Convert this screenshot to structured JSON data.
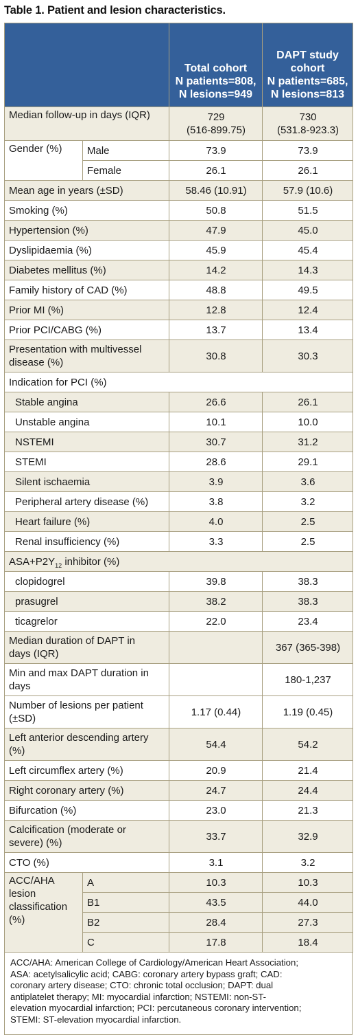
{
  "title": "Table 1. Patient and lesion characteristics.",
  "header": {
    "total": [
      "Total cohort",
      "N patients=808,",
      "N lesions=949"
    ],
    "dapt": [
      "DAPT study",
      "cohort",
      "N patients=685,",
      "N lesions=813"
    ]
  },
  "rows": {
    "followup": {
      "label": "Median follow-up in days (IQR)",
      "total": [
        "729",
        "(516-899.75)"
      ],
      "dapt": [
        "730",
        "(531.8-923.3)"
      ]
    },
    "gender": {
      "label": "Gender (%)",
      "male_label": "Male",
      "male_total": "73.9",
      "male_dapt": "73.9",
      "female_label": "Female",
      "female_total": "26.1",
      "female_dapt": "26.1"
    },
    "age": {
      "label": "Mean age in years (±SD)",
      "total": "58.46 (10.91)",
      "dapt": "57.9 (10.6)"
    },
    "smoking": {
      "label": "Smoking (%)",
      "total": "50.8",
      "dapt": "51.5"
    },
    "hypertension": {
      "label": "Hypertension (%)",
      "total": "47.9",
      "dapt": "45.0"
    },
    "dyslipidaemia": {
      "label": "Dyslipidaemia (%)",
      "total": "45.9",
      "dapt": "45.4"
    },
    "diabetes": {
      "label": "Diabetes mellitus (%)",
      "total": "14.2",
      "dapt": "14.3"
    },
    "family": {
      "label": "Family history of CAD (%)",
      "total": "48.8",
      "dapt": "49.5"
    },
    "prior_mi": {
      "label": "Prior MI (%)",
      "total": "12.8",
      "dapt": "12.4"
    },
    "prior_pci": {
      "label": "Prior PCI/CABG (%)",
      "total": "13.7",
      "dapt": "13.4"
    },
    "multivessel": {
      "label": [
        "Presentation with multivessel",
        "disease (%)"
      ],
      "total": "30.8",
      "dapt": "30.3"
    },
    "indication": {
      "label": "Indication for PCI (%)"
    },
    "stable": {
      "label": "Stable angina",
      "total": "26.6",
      "dapt": "26.1"
    },
    "unstable": {
      "label": "Unstable angina",
      "total": "10.1",
      "dapt": "10.0"
    },
    "nstemi": {
      "label": "NSTEMI",
      "total": "30.7",
      "dapt": "31.2"
    },
    "stemi": {
      "label": "STEMI",
      "total": "28.6",
      "dapt": "29.1"
    },
    "silent": {
      "label": "Silent ischaemia",
      "total": "3.9",
      "dapt": "3.6"
    },
    "peripheral": {
      "label": "Peripheral artery disease (%)",
      "total": "3.8",
      "dapt": "3.2"
    },
    "heart_failure": {
      "label": "Heart failure (%)",
      "total": "4.0",
      "dapt": "2.5"
    },
    "renal": {
      "label": "Renal insufficiency (%)",
      "total": "3.3",
      "dapt": "2.5"
    },
    "asa": {
      "label_pre": "ASA+P2Y",
      "label_sub": "12",
      "label_post": " inhibitor (%)"
    },
    "clopidogrel": {
      "label": "clopidogrel",
      "total": "39.8",
      "dapt": "38.3"
    },
    "prasugrel": {
      "label": "prasugrel",
      "total": "38.2",
      "dapt": "38.3"
    },
    "ticagrelor": {
      "label": "ticagrelor",
      "total": "22.0",
      "dapt": "23.4"
    },
    "median_dapt": {
      "label": [
        "Median duration of DAPT in",
        "days (IQR)"
      ],
      "total": "",
      "dapt": "367 (365-398)"
    },
    "minmax": {
      "label": [
        "Min and max DAPT duration in",
        "days"
      ],
      "total": "",
      "dapt": "180-1,237"
    },
    "lesions": {
      "label": [
        "Number of lesions per patient",
        "(±SD)"
      ],
      "total": "1.17 (0.44)",
      "dapt": "1.19 (0.45)"
    },
    "lad": {
      "label": [
        "Left anterior descending artery",
        "(%)"
      ],
      "total": "54.4",
      "dapt": "54.2"
    },
    "lcx": {
      "label": "Left circumflex artery (%)",
      "total": "20.9",
      "dapt": "21.4"
    },
    "rca": {
      "label": "Right coronary artery (%)",
      "total": "24.7",
      "dapt": "24.4"
    },
    "bifurcation": {
      "label": "Bifurcation (%)",
      "total": "23.0",
      "dapt": "21.3"
    },
    "calcification": {
      "label": [
        "Calcification (moderate or",
        "severe) (%)"
      ],
      "total": "33.7",
      "dapt": "32.9"
    },
    "cto": {
      "label": "CTO (%)",
      "total": "3.1",
      "dapt": "3.2"
    },
    "acc": {
      "label": [
        "ACC/AHA",
        "lesion",
        "classification",
        "(%)"
      ],
      "a_label": "A",
      "a_total": "10.3",
      "a_dapt": "10.3",
      "b1_label": "B1",
      "b1_total": "43.5",
      "b1_dapt": "44.0",
      "b2_label": "B2",
      "b2_total": "28.4",
      "b2_dapt": "27.3",
      "c_label": "C",
      "c_total": "17.8",
      "c_dapt": "18.4"
    }
  },
  "footnote": [
    "ACC/AHA: American College of Cardiology/American Heart Association;",
    "ASA: acetylsalicylic acid; CABG: coronary artery bypass graft; CAD:",
    "coronary artery disease; CTO: chronic total occlusion; DAPT: dual",
    "antiplatelet therapy; MI: myocardial infarction; NSTEMI: non-ST-",
    "elevation myocardial infarction; PCI: percutaneous coronary intervention;",
    "STEMI: ST-elevation myocardial infarction."
  ],
  "colors": {
    "header_bg": "#34609a",
    "beige_row": "#efece0",
    "border": "#a79e7f"
  }
}
